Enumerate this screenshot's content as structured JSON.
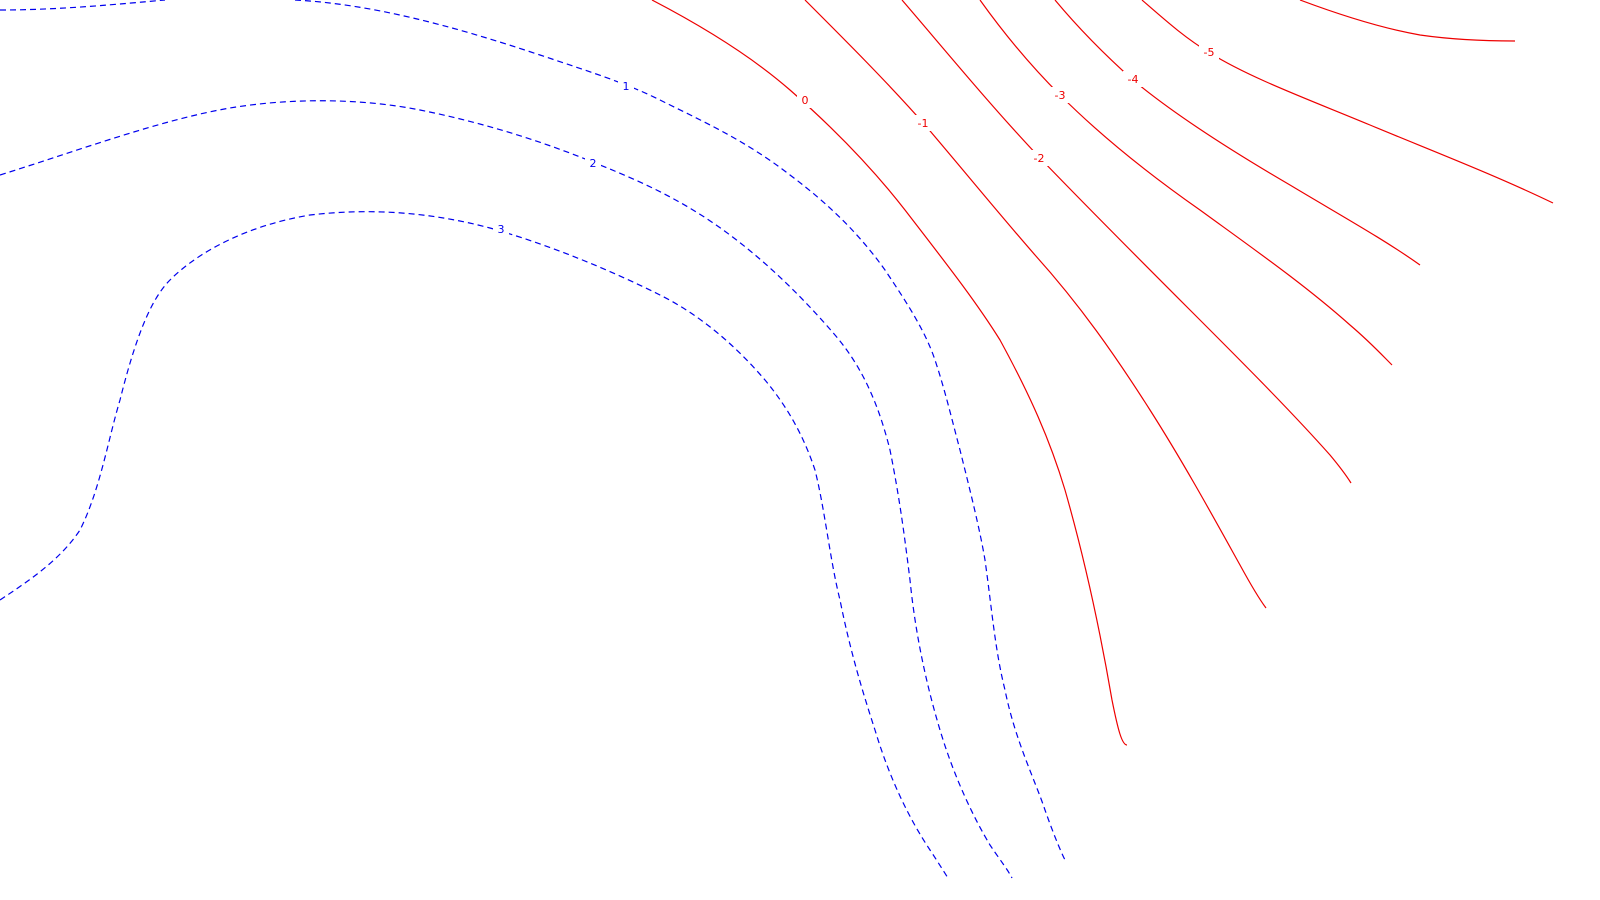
{
  "chart_data": {
    "type": "contour",
    "title": "",
    "xlabel": "",
    "ylabel": "",
    "grid": false,
    "legend": "none",
    "colors": {
      "positive": "#0000ee",
      "negative": "#ee0000",
      "background": "#ffffff"
    },
    "levels": [
      {
        "value": 1,
        "label": "1",
        "sign": "positive",
        "style": "dashed"
      },
      {
        "value": 2,
        "label": "2",
        "sign": "positive",
        "style": "dashed"
      },
      {
        "value": 3,
        "label": "3",
        "sign": "positive",
        "style": "dashed"
      },
      {
        "value": 0,
        "label": "0",
        "sign": "negative",
        "style": "solid"
      },
      {
        "value": -1,
        "label": "-1",
        "sign": "negative",
        "style": "solid"
      },
      {
        "value": -2,
        "label": "-2",
        "sign": "negative",
        "style": "solid"
      },
      {
        "value": -3,
        "label": "-3",
        "sign": "negative",
        "style": "solid"
      },
      {
        "value": -4,
        "label": "-4",
        "sign": "negative",
        "style": "solid"
      },
      {
        "value": -5,
        "label": "-5",
        "sign": "negative",
        "style": "solid"
      }
    ]
  }
}
